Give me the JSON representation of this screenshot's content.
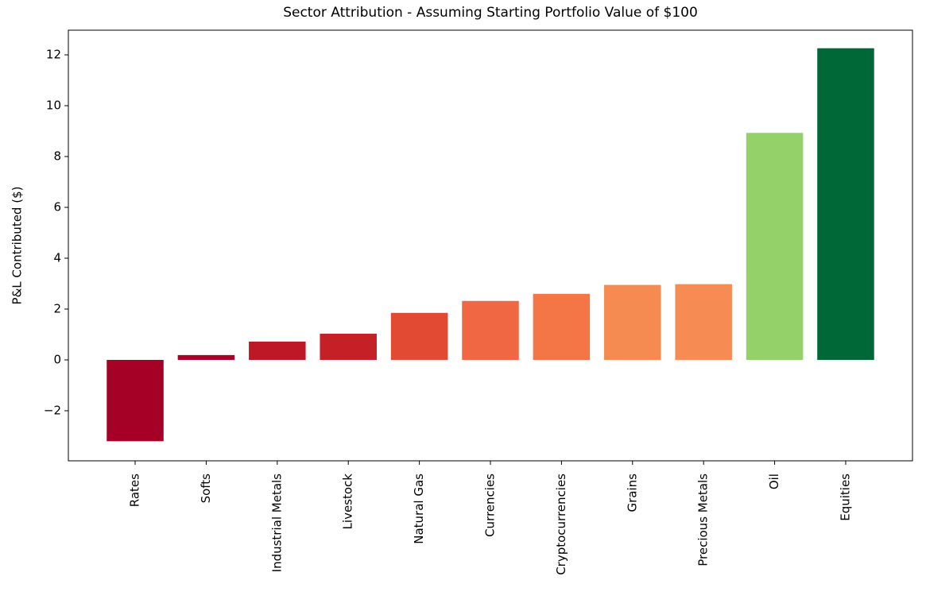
{
  "chart_data": {
    "type": "bar",
    "title": "Sector Attribution - Assuming Starting Portfolio Value of $100",
    "ylabel": "P&L Contributed ($)",
    "categories": [
      "Rates",
      "Softs",
      "Industrial Metals",
      "Livestock",
      "Natural Gas",
      "Currencies",
      "Cryptocurrencies",
      "Grains",
      "Precious Metals",
      "Oil",
      "Equities"
    ],
    "values": [
      -3.2,
      0.19,
      0.72,
      1.03,
      1.85,
      2.32,
      2.6,
      2.95,
      2.98,
      8.93,
      12.26
    ],
    "colors": [
      "#a50026",
      "#a80326",
      "#be1827",
      "#c62027",
      "#e24a33",
      "#f06744",
      "#f47646",
      "#f68b52",
      "#f68b53",
      "#94d168",
      "#006837"
    ],
    "ylim": [
      -3.97,
      12.97
    ],
    "yticks": [
      {
        "value": -2,
        "label": "−2"
      },
      0,
      2,
      4,
      6,
      8,
      10,
      12
    ],
    "grid": false
  }
}
